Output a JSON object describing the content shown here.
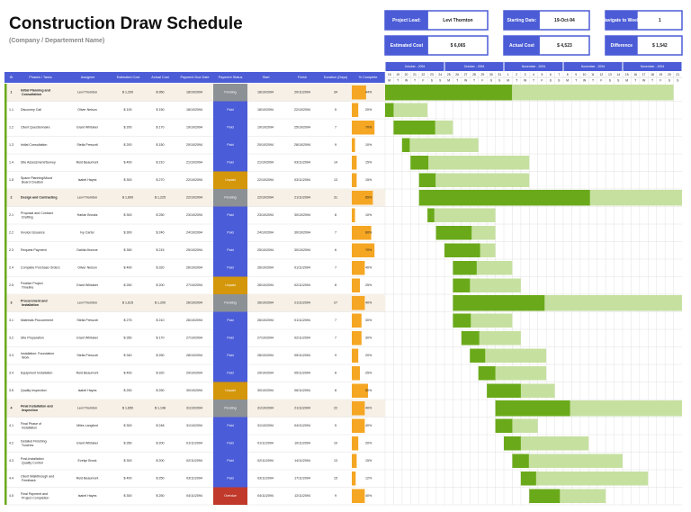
{
  "header": {
    "title": "Construction Draw Schedule",
    "subtitle": "(Company / Departement Name)"
  },
  "info": [
    {
      "label": "Project Lead:",
      "value": "Levi Thornton"
    },
    {
      "label": "Starting Date:",
      "value": "19-Oct-94"
    },
    {
      "label": "Navigate to Week:",
      "value": "1"
    },
    {
      "label": "Estimated Cost",
      "value": "$ 6,065"
    },
    {
      "label": "Actual Cost",
      "value": "$ 4,523"
    },
    {
      "label": "Difference",
      "value": "$ 1,542"
    }
  ],
  "status_colors": {
    "Paid": "#4a5cd8",
    "Pending": "#8c9196",
    "Unpaid": "#d4960a",
    "Overdue": "#c0392b"
  },
  "table": {
    "columns": [
      "ID",
      "Phases / Tasks",
      "Assignee",
      "Estimated Cost",
      "Actual Cost",
      "Payment Due Date",
      "Payment Status",
      "Start",
      "Finish",
      "Duration (Days)",
      "% Complete"
    ],
    "rows": [
      {
        "id": "1",
        "task": "Initial Planning and Consultation",
        "assignee": "Levi Thornton",
        "estimated": "$ 1,200",
        "actual": "$ 950",
        "due": "18/10/2094",
        "status": "Pending",
        "start": "18/10/2094",
        "finish": "20/11/2094",
        "duration": 34,
        "complete": 44,
        "complete_label": "44%"
      },
      {
        "id": "1.1",
        "task": "Discovery Call",
        "assignee": "Oliver Nelson",
        "estimated": "$ 100",
        "actual": "$ 150",
        "due": "18/10/2094",
        "status": "Paid",
        "start": "18/10/2094",
        "finish": "22/10/2094",
        "duration": 5,
        "complete": 20,
        "complete_label": "20%"
      },
      {
        "id": "1.2",
        "task": "Client Questionnaire",
        "assignee": "Grant Whitaker",
        "estimated": "$ 200",
        "actual": "$ 170",
        "due": "19/10/2094",
        "status": "Paid",
        "start": "19/10/2094",
        "finish": "25/10/2094",
        "duration": 7,
        "complete": 70,
        "complete_label": "70%"
      },
      {
        "id": "1.3",
        "task": "Initial Consultation",
        "assignee": "Stella Prescott",
        "estimated": "$ 200",
        "actual": "$ 150",
        "due": "20/10/2094",
        "status": "Paid",
        "start": "20/10/2094",
        "finish": "28/10/2094",
        "duration": 9,
        "complete": 10,
        "complete_label": "10%"
      },
      {
        "id": "1.4",
        "task": "Site Assessment/Survey",
        "assignee": "Reid Beaumont",
        "estimated": "$ 400",
        "actual": "$ 210",
        "due": "21/10/2094",
        "status": "Paid",
        "start": "21/10/2094",
        "finish": "03/11/2094",
        "duration": 14,
        "complete": 15,
        "complete_label": "15%"
      },
      {
        "id": "1.5",
        "task": "Space Planning/Mood Board Creation",
        "assignee": "Isabel Hayes",
        "estimated": "$ 300",
        "actual": "$ 270",
        "due": "22/10/2094",
        "status": "Unpaid",
        "start": "22/10/2094",
        "finish": "03/11/2094",
        "duration": 13,
        "complete": 15,
        "complete_label": "15%"
      },
      {
        "id": "2",
        "task": "Design and Contracting",
        "assignee": "Levi Thornton",
        "estimated": "$ 1,600",
        "actual": "$ 1,225",
        "due": "22/10/2094",
        "status": "Pending",
        "start": "22/10/2094",
        "finish": "21/11/2094",
        "duration": 31,
        "complete": 65,
        "complete_label": "65%"
      },
      {
        "id": "2.1",
        "task": "Proposal and Contract Drafting",
        "assignee": "Harlan Brooks",
        "estimated": "$ 300",
        "actual": "$ 250",
        "due": "23/10/2094",
        "status": "Paid",
        "start": "23/10/2094",
        "finish": "30/10/2094",
        "duration": 8,
        "complete": 10,
        "complete_label": "10%"
      },
      {
        "id": "2.2",
        "task": "Invoice Issuance",
        "assignee": "Ivy Carter",
        "estimated": "$ 300",
        "actual": "$ 240",
        "due": "24/10/2094",
        "status": "Paid",
        "start": "24/10/2094",
        "finish": "30/10/2094",
        "duration": 7,
        "complete": 60,
        "complete_label": "60%"
      },
      {
        "id": "2.3",
        "task": "Request Payment",
        "assignee": "Dahlia Monroe",
        "estimated": "$ 350",
        "actual": "$ 215",
        "due": "25/10/2094",
        "status": "Paid",
        "start": "25/10/2094",
        "finish": "30/10/2094",
        "duration": 6,
        "complete": 70,
        "complete_label": "70%"
      },
      {
        "id": "2.4",
        "task": "Complete Purchase Orders",
        "assignee": "Oliver Nelson",
        "estimated": "$ 400",
        "actual": "$ 320",
        "due": "26/10/2094",
        "status": "Paid",
        "start": "26/10/2094",
        "finish": "01/11/2094",
        "duration": 7,
        "complete": 40,
        "complete_label": "40%"
      },
      {
        "id": "2.5",
        "task": "Finalize Project Timeline",
        "assignee": "Grant Whitaker",
        "estimated": "$ 250",
        "actual": "$ 200",
        "due": "27/10/2094",
        "status": "Unpaid",
        "start": "26/10/2094",
        "finish": "02/11/2094",
        "duration": 8,
        "complete": 25,
        "complete_label": "25%"
      },
      {
        "id": "3",
        "task": "Procurement and Installation",
        "assignee": "Levi Thornton",
        "estimated": "$ 1,615",
        "actual": "$ 1,200",
        "due": "26/10/2094",
        "status": "Pending",
        "start": "26/10/2094",
        "finish": "21/11/2094",
        "duration": 27,
        "complete": 40,
        "complete_label": "40%"
      },
      {
        "id": "3.1",
        "task": "Materials Procurement",
        "assignee": "Stella Prescott",
        "estimated": "$ 275",
        "actual": "$ 210",
        "due": "26/10/2094",
        "status": "Paid",
        "start": "26/10/2094",
        "finish": "01/11/2094",
        "duration": 7,
        "complete": 30,
        "complete_label": "30%"
      },
      {
        "id": "3.2",
        "task": "Site Preparation",
        "assignee": "Grant Whitaker",
        "estimated": "$ 350",
        "actual": "$ 170",
        "due": "27/10/2094",
        "status": "Paid",
        "start": "27/10/2094",
        "finish": "02/11/2094",
        "duration": 7,
        "complete": 30,
        "complete_label": "30%"
      },
      {
        "id": "3.3",
        "task": "Installation: Foundation Work",
        "assignee": "Stella Prescott",
        "estimated": "$ 340",
        "actual": "$ 250",
        "due": "28/10/2094",
        "status": "Paid",
        "start": "28/10/2094",
        "finish": "05/11/2094",
        "duration": 9,
        "complete": 20,
        "complete_label": "20%"
      },
      {
        "id": "3.4",
        "task": "Equipment Installation",
        "assignee": "Reid Beaumont",
        "estimated": "$ 400",
        "actual": "$ 320",
        "due": "29/10/2094",
        "status": "Paid",
        "start": "29/10/2094",
        "finish": "05/11/2094",
        "duration": 8,
        "complete": 25,
        "complete_label": "25%"
      },
      {
        "id": "3.5",
        "task": "Quality Inspection",
        "assignee": "Isabel Hayes",
        "estimated": "$ 250",
        "actual": "$ 250",
        "due": "30/10/2094",
        "status": "Unpaid",
        "start": "30/10/2094",
        "finish": "06/11/2094",
        "duration": 8,
        "complete": 50,
        "complete_label": "50%"
      },
      {
        "id": "4",
        "task": "Final Installation and Inspection",
        "assignee": "Levi Thornton",
        "estimated": "$ 1,650",
        "actual": "$ 1,148",
        "due": "31/10/2094",
        "status": "Pending",
        "start": "31/10/2094",
        "finish": "21/11/2094",
        "duration": 22,
        "complete": 40,
        "complete_label": "40%"
      },
      {
        "id": "4.1",
        "task": "Final Phase of Installation",
        "assignee": "Miles Langford",
        "estimated": "$ 300",
        "actual": "$ 248",
        "due": "31/10/2094",
        "status": "Paid",
        "start": "31/10/2094",
        "finish": "04/11/2094",
        "duration": 5,
        "complete": 40,
        "complete_label": "40%"
      },
      {
        "id": "4.2",
        "task": "Detailed Finishing Touches",
        "assignee": "Grant Whitaker",
        "estimated": "$ 350",
        "actual": "$ 200",
        "due": "01/11/2094",
        "status": "Paid",
        "start": "01/11/2094",
        "finish": "10/11/2094",
        "duration": 10,
        "complete": 20,
        "complete_label": "20%"
      },
      {
        "id": "4.3",
        "task": "Post-Installation Quality Control",
        "assignee": "Evelyn Brock",
        "estimated": "$ 300",
        "actual": "$ 200",
        "due": "02/11/2094",
        "status": "Paid",
        "start": "02/11/2094",
        "finish": "14/11/2094",
        "duration": 13,
        "complete": 15,
        "complete_label": "15%"
      },
      {
        "id": "4.4",
        "task": "Client Walkthrough and Feedback",
        "assignee": "Reid Beaumont",
        "estimated": "$ 400",
        "actual": "$ 250",
        "due": "03/11/2094",
        "status": "Paid",
        "start": "03/11/2094",
        "finish": "17/11/2094",
        "duration": 15,
        "complete": 12,
        "complete_label": "12%"
      },
      {
        "id": "4.5",
        "task": "Final Payment and Project Completion",
        "assignee": "Isabel Hayes",
        "estimated": "$ 300",
        "actual": "$ 250",
        "due": "04/11/2094",
        "status": "Overdue",
        "start": "04/11/2094",
        "finish": "12/11/2094",
        "duration": 9,
        "complete": 40,
        "complete_label": "40%"
      }
    ]
  },
  "timeline": {
    "months": [
      "October - 2094",
      "October - 2094",
      "November - 2094",
      "November - 2094",
      "November - 2094"
    ],
    "days": [
      18,
      19,
      20,
      21,
      22,
      23,
      24,
      25,
      26,
      27,
      28,
      29,
      30,
      31,
      1,
      2,
      3,
      4,
      5,
      6,
      7,
      8,
      9,
      10,
      11,
      12,
      13,
      14,
      15,
      16,
      17,
      18,
      19,
      20,
      21
    ],
    "weekdays": [
      "M",
      "T",
      "W",
      "T",
      "F",
      "S",
      "S"
    ]
  }
}
